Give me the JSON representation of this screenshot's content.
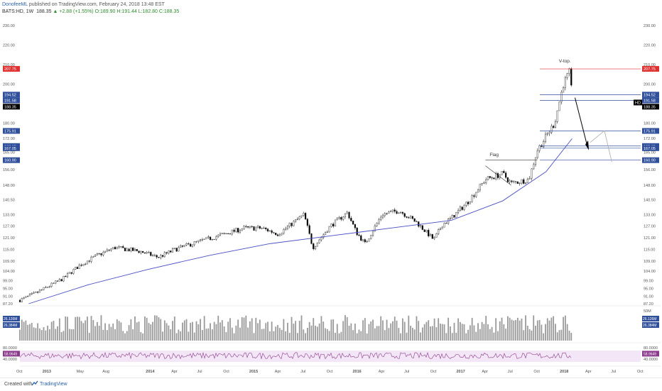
{
  "header": {
    "author": "DonofeeML",
    "published": "published on TradingView.com, February 24, 2018 13:48 EST",
    "symbol": "BATS:HD, 1W",
    "last": "188.35",
    "change": "+2.88 (+1.55%)",
    "ohlc": "O:189.90 H:191.44 L:182.80 C:188.35"
  },
  "footer": {
    "created_with": "Created with",
    "brand": "TradingView"
  },
  "colors": {
    "up": "#ffffff",
    "down": "#000000",
    "ma": "#4a4ec4",
    "red_level": "#e03030",
    "blue_level": "#2f4f9a",
    "rsi_line": "#8a3a8a",
    "rsi_band": "#f3e6f6",
    "volume": "#9a9a9a"
  },
  "chart_data": {
    "type": "candlestick",
    "ylim": [
      87.2,
      230.0
    ],
    "y_ticks": [
      "230.00",
      "220.00",
      "210.00",
      "200.00",
      "188.35",
      "180.00",
      "172.00",
      "165.00",
      "156.00",
      "148.00",
      "140.50",
      "133.00",
      "127.00",
      "121.00",
      "115.00",
      "109.00",
      "104.00",
      "99.00",
      "95.00",
      "91.00",
      "87.20"
    ],
    "x_ticks": [
      "Oct",
      "2013",
      "May",
      "Aug",
      "2014",
      "Apr",
      "Jul",
      "Oct",
      "2015",
      "Apr",
      "Jul",
      "Oct",
      "2016",
      "Apr",
      "Jul",
      "Oct",
      "2017",
      "Apr",
      "Jul",
      "Oct",
      "2018",
      "Apr",
      "Jul",
      "Oct"
    ],
    "start": "2012-10",
    "end": "2018-10",
    "series": [
      {
        "name": "HD",
        "price_path_dates": [
          "2012-10",
          "2012-12",
          "2013-03",
          "2013-05",
          "2013-07",
          "2013-09",
          "2013-12",
          "2014-02",
          "2014-04",
          "2014-06",
          "2014-09",
          "2014-12",
          "2015-02",
          "2015-04",
          "2015-07",
          "2015-08",
          "2015-10",
          "2015-12",
          "2016-01",
          "2016-02",
          "2016-04",
          "2016-06",
          "2016-08",
          "2016-10",
          "2016-11",
          "2016-12",
          "2017-02",
          "2017-04",
          "2017-06",
          "2017-07",
          "2017-09",
          "2017-10",
          "2017-12",
          "2018-01",
          "2018-01-26",
          "2018-02"
        ],
        "price_path_values": [
          89,
          93,
          100,
          107,
          112,
          116,
          114,
          111,
          115,
          118,
          122,
          126,
          126,
          123,
          133,
          116,
          127,
          134,
          124,
          118,
          133,
          135,
          129,
          120,
          128,
          131,
          140,
          151,
          154,
          149,
          151,
          166,
          180,
          200,
          207,
          188
        ]
      },
      {
        "name": "MA",
        "dates": [
          "2012-11",
          "2013-06",
          "2014-01",
          "2014-08",
          "2015-03",
          "2015-10",
          "2016-05",
          "2016-12",
          "2017-06",
          "2017-11",
          "2018-02"
        ],
        "values": [
          85,
          97,
          105,
          112,
          118,
          122,
          126,
          130,
          140,
          155,
          172
        ]
      }
    ],
    "levels": [
      {
        "label": "207.75",
        "value": 207.75,
        "color": "red"
      },
      {
        "label": "194.52",
        "value": 194.52,
        "color": "blue"
      },
      {
        "label": "191.58",
        "value": 191.58,
        "color": "blue"
      },
      {
        "label": "188.35",
        "value": 188.35,
        "color": "black"
      },
      {
        "label": "175.91",
        "value": 175.91,
        "color": "blue"
      },
      {
        "label": "168.15",
        "value": 168.15,
        "color": "blue"
      },
      {
        "label": "167.05",
        "value": 167.05,
        "color": "blue"
      },
      {
        "label": "160.90",
        "value": 160.9,
        "color": "blue"
      }
    ],
    "annotations": [
      "V-top.",
      "Flag"
    ],
    "symbol_label": "HD",
    "volume": {
      "ticks": [
        "50M",
        "26.39M",
        "26.304M"
      ],
      "labels": [
        "26.126M",
        "26.384M"
      ]
    },
    "rsi": {
      "ticks": [
        "80.0000",
        "40.0000"
      ],
      "label": "58.9649",
      "band": [
        30,
        70
      ]
    }
  }
}
